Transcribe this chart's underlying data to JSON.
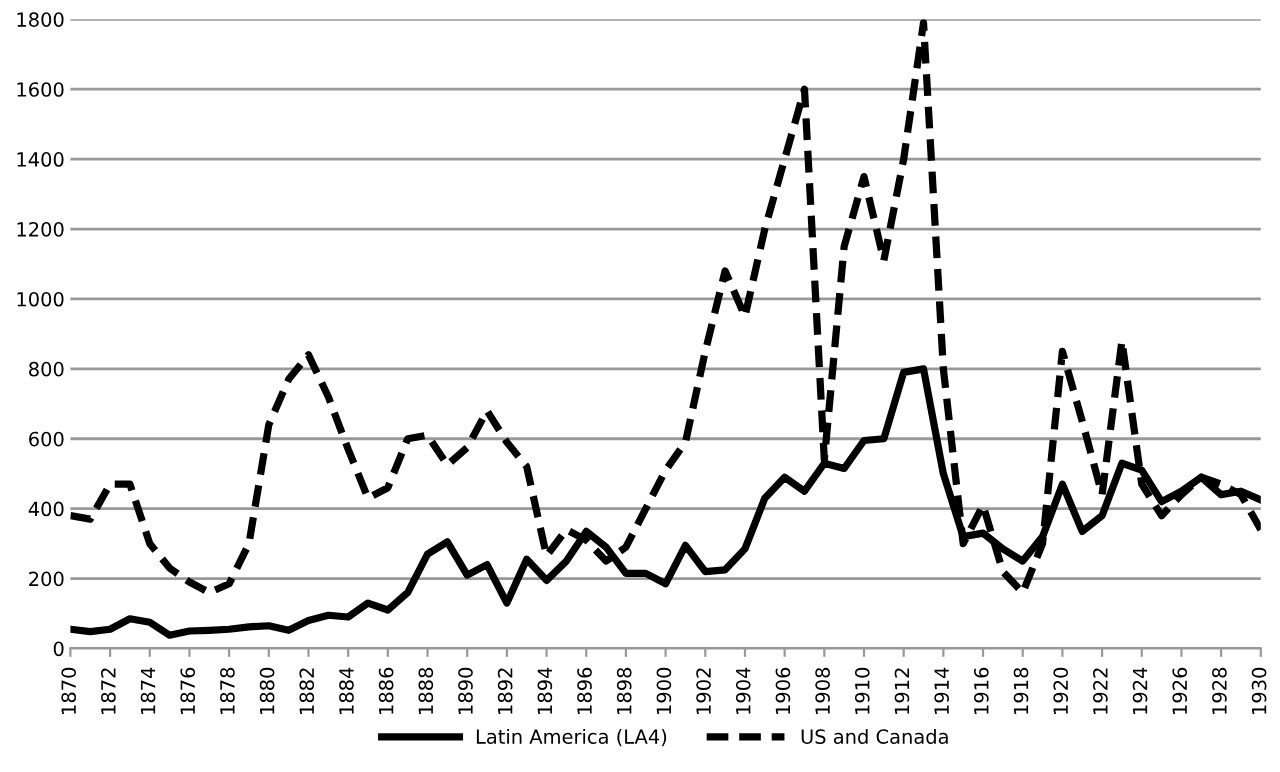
{
  "chart_data": {
    "type": "line",
    "x": [
      1870,
      1871,
      1872,
      1873,
      1874,
      1875,
      1876,
      1877,
      1878,
      1879,
      1880,
      1881,
      1882,
      1883,
      1884,
      1885,
      1886,
      1887,
      1888,
      1889,
      1890,
      1891,
      1892,
      1893,
      1894,
      1895,
      1896,
      1897,
      1898,
      1899,
      1900,
      1901,
      1902,
      1903,
      1904,
      1905,
      1906,
      1907,
      1908,
      1909,
      1910,
      1911,
      1912,
      1913,
      1914,
      1915,
      1916,
      1917,
      1918,
      1919,
      1920,
      1921,
      1922,
      1923,
      1924,
      1925,
      1926,
      1927,
      1928,
      1929,
      1930
    ],
    "series": [
      {
        "name": "Latin America (LA4)",
        "color": "#000000",
        "line_style": "solid",
        "values": [
          55,
          48,
          55,
          85,
          75,
          38,
          50,
          52,
          55,
          62,
          65,
          52,
          80,
          95,
          90,
          130,
          110,
          160,
          270,
          305,
          210,
          240,
          130,
          255,
          195,
          250,
          335,
          290,
          215,
          215,
          185,
          295,
          220,
          225,
          285,
          430,
          490,
          450,
          530,
          515,
          595,
          600,
          790,
          800,
          500,
          320,
          330,
          285,
          250,
          320,
          470,
          335,
          380,
          530,
          510,
          420,
          450,
          490,
          440,
          450,
          425
        ]
      },
      {
        "name": "US and Canada",
        "color": "#000000",
        "line_style": "dashed",
        "values": [
          380,
          370,
          470,
          470,
          300,
          230,
          190,
          160,
          185,
          300,
          640,
          770,
          840,
          720,
          570,
          430,
          460,
          600,
          610,
          525,
          575,
          680,
          590,
          520,
          265,
          340,
          310,
          250,
          290,
          400,
          510,
          590,
          850,
          1080,
          950,
          1200,
          1400,
          1600,
          540,
          1150,
          1350,
          1110,
          1400,
          1790,
          800,
          300,
          410,
          220,
          160,
          300,
          850,
          650,
          440,
          880,
          470,
          380,
          440,
          490,
          470,
          440,
          340
        ]
      }
    ],
    "xlim": [
      1870,
      1930
    ],
    "xticks": [
      1870,
      1872,
      1874,
      1876,
      1878,
      1880,
      1882,
      1884,
      1886,
      1888,
      1890,
      1892,
      1894,
      1896,
      1898,
      1900,
      1902,
      1904,
      1906,
      1908,
      1910,
      1912,
      1914,
      1916,
      1918,
      1920,
      1922,
      1924,
      1926,
      1928,
      1930
    ],
    "ylim": [
      0,
      1800
    ],
    "yticks": [
      0,
      200,
      400,
      600,
      800,
      1000,
      1200,
      1400,
      1600,
      1800
    ],
    "grid": "y",
    "legend": "bottom"
  }
}
